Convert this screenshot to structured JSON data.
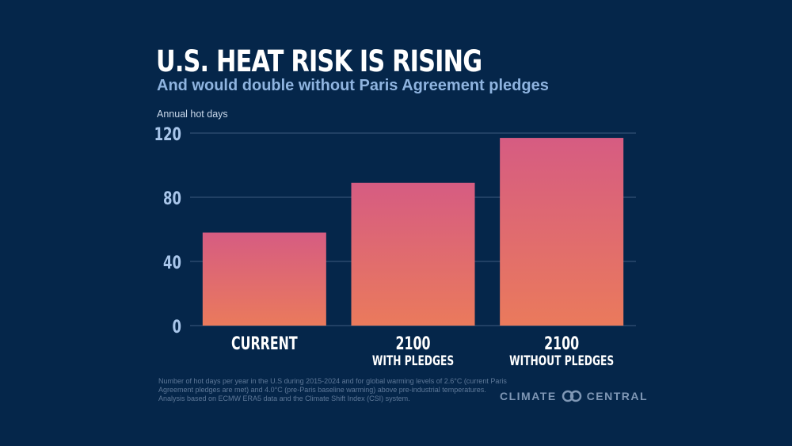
{
  "chart_data": {
    "type": "bar",
    "title": "U.S. HEAT RISK IS RISING",
    "subtitle": "And would double without Paris Agreement pledges",
    "ylabel": "Annual hot days",
    "xlabel": "",
    "categories": [
      [
        "CURRENT"
      ],
      [
        "2100",
        "WITH PLEDGES"
      ],
      [
        "2100",
        "WITHOUT PLEDGES"
      ]
    ],
    "values": [
      58,
      89,
      117
    ],
    "ylim": [
      0,
      120
    ],
    "yticks": [
      0,
      40,
      80,
      120
    ],
    "grid": true,
    "colors": {
      "bar_top": "#d65c82",
      "bar_bottom": "#ea7a5c",
      "background": "#05264a",
      "grid": "#3d5a7d",
      "tick": "#a9c6ea"
    }
  },
  "footnote": "Number of hot days per year in the U.S during 2015-2024 and for global warming levels of 2.6°C (current Paris Agreement pledges are met) and 4.0°C (pre-Paris baseline warming)  above pre-industrial temperatures. Analysis based on ECMW ERA5 data and the Climate Shift Index (CSI) system.",
  "logo": {
    "left": "CLIMATE",
    "right": "CENTRAL"
  }
}
